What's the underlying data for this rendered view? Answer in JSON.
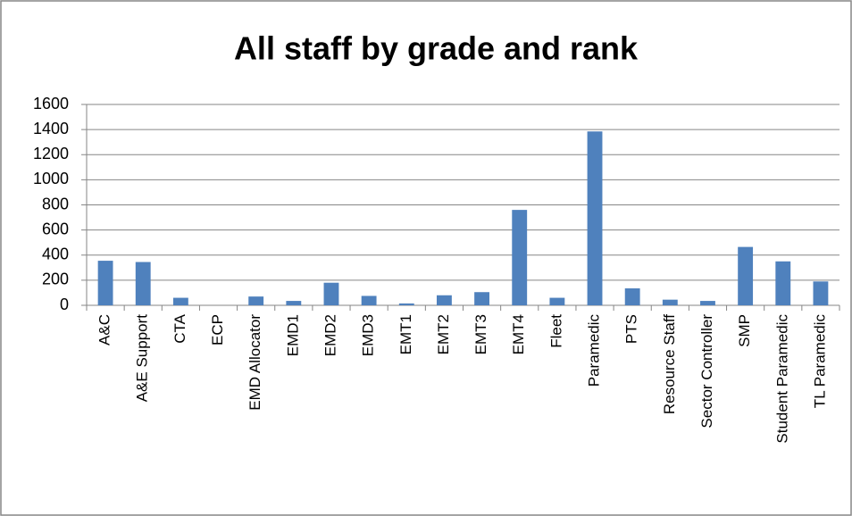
{
  "chart_data": {
    "type": "bar",
    "title": "All staff by grade and rank",
    "categories": [
      "A&C",
      "A&E Support",
      "CTA",
      "ECP",
      "EMD Allocator",
      "EMD1",
      "EMD2",
      "EMD3",
      "EMT1",
      "EMT2",
      "EMT3",
      "EMT4",
      "Fleet",
      "Paramedic",
      "PTS",
      "Resource Staff",
      "Sector Controller",
      "SMP",
      "Student Paramedic",
      "TL Paramedic"
    ],
    "values": [
      355,
      345,
      60,
      0,
      70,
      35,
      180,
      75,
      15,
      80,
      105,
      760,
      60,
      1385,
      135,
      45,
      35,
      465,
      350,
      190
    ],
    "color": "#4f81bd",
    "ylim": [
      0,
      1600
    ],
    "yticks": [
      0,
      200,
      400,
      600,
      800,
      1000,
      1200,
      1400,
      1600
    ],
    "grid": true
  }
}
